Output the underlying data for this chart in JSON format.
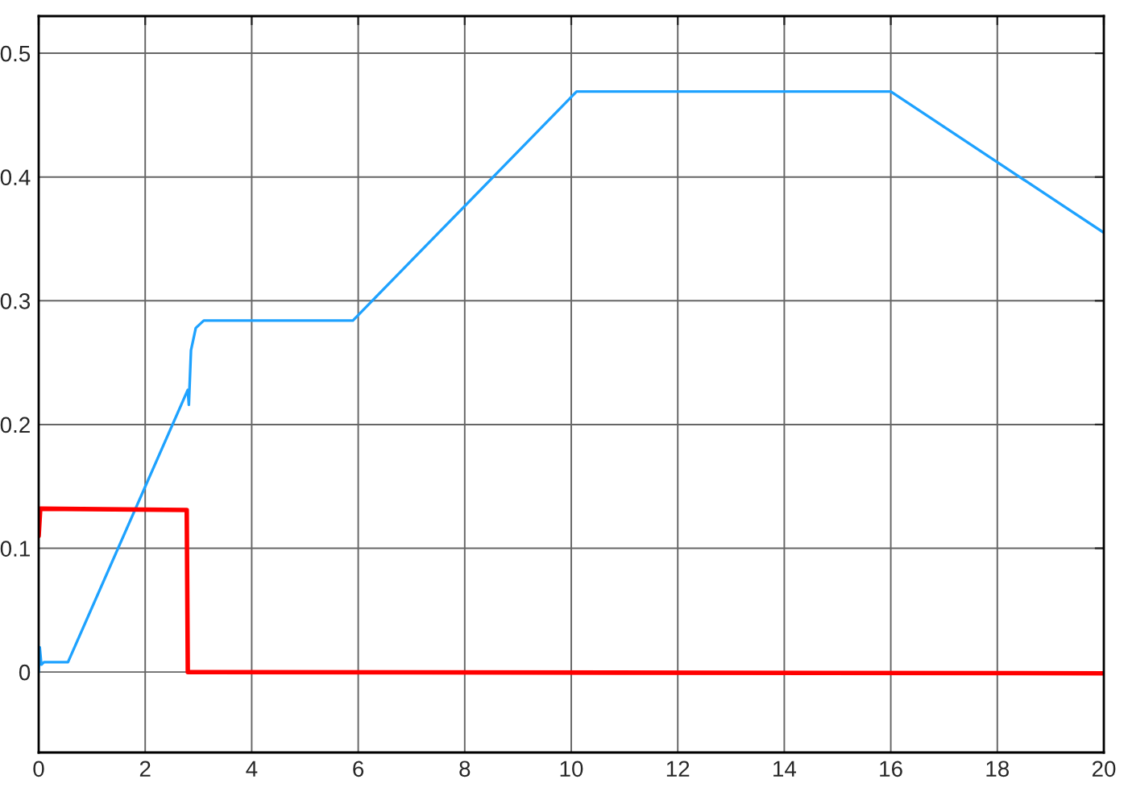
{
  "chart_data": {
    "type": "line",
    "xlim": [
      0,
      20
    ],
    "xticks": [
      0,
      2,
      4,
      6,
      8,
      10,
      12,
      14,
      16,
      18,
      20
    ],
    "ylim": [
      -0.065,
      0.53
    ],
    "yticks": [
      0,
      0.1,
      0.2,
      0.3,
      0.4,
      0.5
    ],
    "grid": true,
    "series": [
      {
        "color": "#1ea2ff",
        "x": [
          0,
          0.02,
          0.05,
          0.1,
          0.55,
          2.8,
          2.82,
          2.86,
          2.95,
          3.1,
          5.9,
          10.1,
          16.0,
          20
        ],
        "values": [
          0,
          0.02,
          0.006,
          0.008,
          0.008,
          0.228,
          0.216,
          0.26,
          0.278,
          0.284,
          0.284,
          0.469,
          0.469,
          0.355
        ]
      },
      {
        "color": "#ff0000",
        "x": [
          0,
          0.03,
          2.78,
          2.8,
          20
        ],
        "values": [
          0.11,
          0.132,
          0.131,
          0,
          -0.001
        ]
      }
    ]
  }
}
